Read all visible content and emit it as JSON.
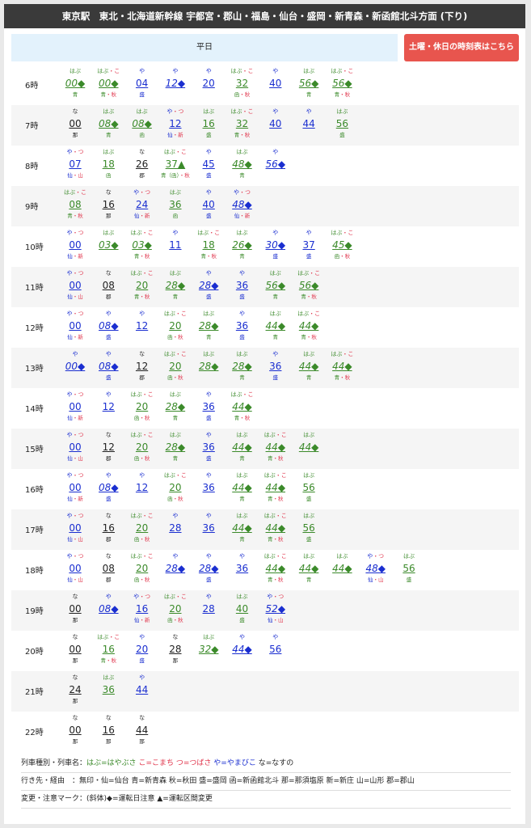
{
  "header": {
    "title": "東京駅　東北・北海道新幹線 宇都宮・郡山・福島・仙台・盛岡・新青森・新函館北斗方面 (下り)"
  },
  "weekday_tab": "平日",
  "holiday_button": "土曜・休日の時刻表はこちら",
  "colors": {
    "hayabusa": "#3b8a2a",
    "komachi": "#e0334a",
    "tsubasa": "#e0334a",
    "yamabiko": "#1a2ed0",
    "nasuno": "#222222",
    "header_bg": "#3a3a3a",
    "weekday_bg": "#e3f2fc",
    "holiday_bg": "#e8554e"
  },
  "hours": [
    {
      "hour": "6時",
      "trains": [
        {
          "n": "はぶ",
          "m": "00◆",
          "d": "青",
          "t": "hayabusa",
          "i": true
        },
        {
          "n": "はぶ・こ",
          "m": "00◆",
          "d": "青・秋",
          "t": "hayabusa",
          "i": true
        },
        {
          "n": "や",
          "m": "04",
          "d": "盛",
          "t": "yamabiko",
          "i": false
        },
        {
          "n": "や",
          "m": "12◆",
          "d": "",
          "t": "yamabiko",
          "i": true
        },
        {
          "n": "や",
          "m": "20",
          "d": "",
          "t": "yamabiko",
          "i": false
        },
        {
          "n": "はぶ・こ",
          "m": "32",
          "d": "函・秋",
          "t": "hayabusa",
          "i": false
        },
        {
          "n": "や",
          "m": "40",
          "d": "",
          "t": "yamabiko",
          "i": false
        },
        {
          "n": "はぶ",
          "m": "56◆",
          "d": "青",
          "t": "hayabusa",
          "i": true
        },
        {
          "n": "はぶ・こ",
          "m": "56◆",
          "d": "青・秋",
          "t": "hayabusa",
          "i": true
        }
      ]
    },
    {
      "hour": "7時",
      "trains": [
        {
          "n": "な",
          "m": "00",
          "d": "那",
          "t": "nasuno",
          "i": false
        },
        {
          "n": "はぶ",
          "m": "08◆",
          "d": "青",
          "t": "hayabusa",
          "i": true
        },
        {
          "n": "はぶ",
          "m": "08◆",
          "d": "函",
          "t": "hayabusa",
          "i": true
        },
        {
          "n": "や・つ",
          "m": "12",
          "d": "仙・新",
          "t": "yamabiko",
          "i": false
        },
        {
          "n": "はぶ",
          "m": "16",
          "d": "盛",
          "t": "hayabusa",
          "i": false
        },
        {
          "n": "はぶ・こ",
          "m": "32",
          "d": "青・秋",
          "t": "hayabusa",
          "i": false
        },
        {
          "n": "や",
          "m": "40",
          "d": "",
          "t": "yamabiko",
          "i": false
        },
        {
          "n": "や",
          "m": "44",
          "d": "",
          "t": "yamabiko",
          "i": false
        },
        {
          "n": "はぶ",
          "m": "56",
          "d": "盛",
          "t": "hayabusa",
          "i": false
        }
      ]
    },
    {
      "hour": "8時",
      "trains": [
        {
          "n": "や・つ",
          "m": "07",
          "d": "仙・山",
          "t": "yamabiko",
          "i": false
        },
        {
          "n": "はぶ",
          "m": "18",
          "d": "函",
          "t": "hayabusa",
          "i": false
        },
        {
          "n": "な",
          "m": "26",
          "d": "郡",
          "t": "nasuno",
          "i": false
        },
        {
          "n": "はぶ・こ",
          "m": "37▲",
          "d": "青（函）・秋",
          "t": "hayabusa",
          "i": false
        },
        {
          "n": "や",
          "m": "45",
          "d": "盛",
          "t": "yamabiko",
          "i": false
        },
        {
          "n": "はぶ",
          "m": "48◆",
          "d": "青",
          "t": "hayabusa",
          "i": true
        },
        {
          "n": "や",
          "m": "56◆",
          "d": "",
          "t": "yamabiko",
          "i": true
        }
      ]
    },
    {
      "hour": "9時",
      "trains": [
        {
          "n": "はぶ・こ",
          "m": "08",
          "d": "青・秋",
          "t": "hayabusa",
          "i": false
        },
        {
          "n": "な",
          "m": "16",
          "d": "那",
          "t": "nasuno",
          "i": false
        },
        {
          "n": "や・つ",
          "m": "24",
          "d": "仙・新",
          "t": "yamabiko",
          "i": false
        },
        {
          "n": "はぶ",
          "m": "36",
          "d": "函",
          "t": "hayabusa",
          "i": false
        },
        {
          "n": "や",
          "m": "40",
          "d": "盛",
          "t": "yamabiko",
          "i": false
        },
        {
          "n": "や・つ",
          "m": "48◆",
          "d": "仙・新",
          "t": "yamabiko",
          "i": true
        }
      ]
    },
    {
      "hour": "10時",
      "trains": [
        {
          "n": "や・つ",
          "m": "00",
          "d": "仙・新",
          "t": "yamabiko",
          "i": false
        },
        {
          "n": "はぶ",
          "m": "03◆",
          "d": "",
          "t": "hayabusa",
          "i": true
        },
        {
          "n": "はぶ・こ",
          "m": "03◆",
          "d": "青・秋",
          "t": "hayabusa",
          "i": true
        },
        {
          "n": "や",
          "m": "11",
          "d": "",
          "t": "yamabiko",
          "i": false
        },
        {
          "n": "はぶ・こ",
          "m": "18",
          "d": "青・秋",
          "t": "hayabusa",
          "i": false
        },
        {
          "n": "はぶ",
          "m": "26◆",
          "d": "青",
          "t": "hayabusa",
          "i": true
        },
        {
          "n": "や",
          "m": "30◆",
          "d": "盛",
          "t": "yamabiko",
          "i": true
        },
        {
          "n": "や",
          "m": "37",
          "d": "盛",
          "t": "yamabiko",
          "i": false
        },
        {
          "n": "はぶ・こ",
          "m": "45◆",
          "d": "函・秋",
          "t": "hayabusa",
          "i": true
        }
      ]
    },
    {
      "hour": "11時",
      "trains": [
        {
          "n": "や・つ",
          "m": "00",
          "d": "仙・山",
          "t": "yamabiko",
          "i": false
        },
        {
          "n": "な",
          "m": "08",
          "d": "郡",
          "t": "nasuno",
          "i": false
        },
        {
          "n": "はぶ・こ",
          "m": "20",
          "d": "青・秋",
          "t": "hayabusa",
          "i": false
        },
        {
          "n": "はぶ",
          "m": "28◆",
          "d": "青",
          "t": "hayabusa",
          "i": true
        },
        {
          "n": "や",
          "m": "28◆",
          "d": "盛",
          "t": "yamabiko",
          "i": true
        },
        {
          "n": "や",
          "m": "36",
          "d": "盛",
          "t": "yamabiko",
          "i": false
        },
        {
          "n": "はぶ",
          "m": "56◆",
          "d": "青",
          "t": "hayabusa",
          "i": true
        },
        {
          "n": "はぶ・こ",
          "m": "56◆",
          "d": "青・秋",
          "t": "hayabusa",
          "i": true
        }
      ]
    },
    {
      "hour": "12時",
      "trains": [
        {
          "n": "や・つ",
          "m": "00",
          "d": "仙・新",
          "t": "yamabiko",
          "i": false
        },
        {
          "n": "や",
          "m": "08◆",
          "d": "盛",
          "t": "yamabiko",
          "i": true
        },
        {
          "n": "や",
          "m": "12",
          "d": "",
          "t": "yamabiko",
          "i": false
        },
        {
          "n": "はぶ・こ",
          "m": "20",
          "d": "函・秋",
          "t": "hayabusa",
          "i": false
        },
        {
          "n": "はぶ",
          "m": "28◆",
          "d": "青",
          "t": "hayabusa",
          "i": true
        },
        {
          "n": "や",
          "m": "36",
          "d": "盛",
          "t": "yamabiko",
          "i": false
        },
        {
          "n": "はぶ",
          "m": "44◆",
          "d": "青",
          "t": "hayabusa",
          "i": true
        },
        {
          "n": "はぶ・こ",
          "m": "44◆",
          "d": "青・秋",
          "t": "hayabusa",
          "i": true
        }
      ]
    },
    {
      "hour": "13時",
      "trains": [
        {
          "n": "や",
          "m": "00◆",
          "d": "",
          "t": "yamabiko",
          "i": true
        },
        {
          "n": "や",
          "m": "08◆",
          "d": "盛",
          "t": "yamabiko",
          "i": true
        },
        {
          "n": "な",
          "m": "12",
          "d": "郡",
          "t": "nasuno",
          "i": false
        },
        {
          "n": "はぶ・こ",
          "m": "20",
          "d": "函・秋",
          "t": "hayabusa",
          "i": false
        },
        {
          "n": "はぶ",
          "m": "28◆",
          "d": "",
          "t": "hayabusa",
          "i": true
        },
        {
          "n": "はぶ",
          "m": "28◆",
          "d": "青",
          "t": "hayabusa",
          "i": true
        },
        {
          "n": "や",
          "m": "36",
          "d": "盛",
          "t": "yamabiko",
          "i": false
        },
        {
          "n": "はぶ",
          "m": "44◆",
          "d": "青",
          "t": "hayabusa",
          "i": true
        },
        {
          "n": "はぶ・こ",
          "m": "44◆",
          "d": "青・秋",
          "t": "hayabusa",
          "i": true
        }
      ]
    },
    {
      "hour": "14時",
      "trains": [
        {
          "n": "や・つ",
          "m": "00",
          "d": "仙・新",
          "t": "yamabiko",
          "i": false
        },
        {
          "n": "や",
          "m": "12",
          "d": "",
          "t": "yamabiko",
          "i": false
        },
        {
          "n": "はぶ・こ",
          "m": "20",
          "d": "函・秋",
          "t": "hayabusa",
          "i": false
        },
        {
          "n": "はぶ",
          "m": "28◆",
          "d": "青",
          "t": "hayabusa",
          "i": true
        },
        {
          "n": "や",
          "m": "36",
          "d": "盛",
          "t": "yamabiko",
          "i": false
        },
        {
          "n": "はぶ・こ",
          "m": "44◆",
          "d": "青・秋",
          "t": "hayabusa",
          "i": true
        }
      ]
    },
    {
      "hour": "15時",
      "trains": [
        {
          "n": "や・つ",
          "m": "00",
          "d": "仙・山",
          "t": "yamabiko",
          "i": false
        },
        {
          "n": "な",
          "m": "12",
          "d": "郡",
          "t": "nasuno",
          "i": false
        },
        {
          "n": "はぶ・こ",
          "m": "20",
          "d": "函・秋",
          "t": "hayabusa",
          "i": false
        },
        {
          "n": "はぶ",
          "m": "28◆",
          "d": "青",
          "t": "hayabusa",
          "i": true
        },
        {
          "n": "や",
          "m": "36",
          "d": "盛",
          "t": "yamabiko",
          "i": false
        },
        {
          "n": "はぶ",
          "m": "44◆",
          "d": "青",
          "t": "hayabusa",
          "i": true
        },
        {
          "n": "はぶ・こ",
          "m": "44◆",
          "d": "青・秋",
          "t": "hayabusa",
          "i": true
        },
        {
          "n": "はぶ",
          "m": "44◆",
          "d": "",
          "t": "hayabusa",
          "i": true
        }
      ]
    },
    {
      "hour": "16時",
      "trains": [
        {
          "n": "や・つ",
          "m": "00",
          "d": "仙・新",
          "t": "yamabiko",
          "i": false
        },
        {
          "n": "や",
          "m": "08◆",
          "d": "盛",
          "t": "yamabiko",
          "i": true
        },
        {
          "n": "や",
          "m": "12",
          "d": "",
          "t": "yamabiko",
          "i": false
        },
        {
          "n": "はぶ・こ",
          "m": "20",
          "d": "函・秋",
          "t": "hayabusa",
          "i": false
        },
        {
          "n": "や",
          "m": "36",
          "d": "",
          "t": "yamabiko",
          "i": false
        },
        {
          "n": "はぶ",
          "m": "44◆",
          "d": "青",
          "t": "hayabusa",
          "i": true
        },
        {
          "n": "はぶ・こ",
          "m": "44◆",
          "d": "青・秋",
          "t": "hayabusa",
          "i": true
        },
        {
          "n": "はぶ",
          "m": "56",
          "d": "盛",
          "t": "hayabusa",
          "i": false
        }
      ]
    },
    {
      "hour": "17時",
      "trains": [
        {
          "n": "や・つ",
          "m": "00",
          "d": "仙・山",
          "t": "yamabiko",
          "i": false
        },
        {
          "n": "な",
          "m": "16",
          "d": "郡",
          "t": "nasuno",
          "i": false
        },
        {
          "n": "はぶ・こ",
          "m": "20",
          "d": "函・秋",
          "t": "hayabusa",
          "i": false
        },
        {
          "n": "や",
          "m": "28",
          "d": "",
          "t": "yamabiko",
          "i": false
        },
        {
          "n": "や",
          "m": "36",
          "d": "",
          "t": "yamabiko",
          "i": false
        },
        {
          "n": "はぶ",
          "m": "44◆",
          "d": "青",
          "t": "hayabusa",
          "i": true
        },
        {
          "n": "はぶ・こ",
          "m": "44◆",
          "d": "青・秋",
          "t": "hayabusa",
          "i": true
        },
        {
          "n": "はぶ",
          "m": "56",
          "d": "盛",
          "t": "hayabusa",
          "i": false
        }
      ]
    },
    {
      "hour": "18時",
      "trains": [
        {
          "n": "や・つ",
          "m": "00",
          "d": "仙・山",
          "t": "yamabiko",
          "i": false
        },
        {
          "n": "な",
          "m": "08",
          "d": "郡",
          "t": "nasuno",
          "i": false
        },
        {
          "n": "はぶ・こ",
          "m": "20",
          "d": "函・秋",
          "t": "hayabusa",
          "i": false
        },
        {
          "n": "や",
          "m": "28◆",
          "d": "",
          "t": "yamabiko",
          "i": true
        },
        {
          "n": "や",
          "m": "28◆",
          "d": "盛",
          "t": "yamabiko",
          "i": true
        },
        {
          "n": "や",
          "m": "36",
          "d": "",
          "t": "yamabiko",
          "i": false
        },
        {
          "n": "はぶ・こ",
          "m": "44◆",
          "d": "青・秋",
          "t": "hayabusa",
          "i": true
        },
        {
          "n": "はぶ",
          "m": "44◆",
          "d": "青",
          "t": "hayabusa",
          "i": true
        },
        {
          "n": "はぶ",
          "m": "44◆",
          "d": "",
          "t": "hayabusa",
          "i": true
        },
        {
          "n": "や・つ",
          "m": "48◆",
          "d": "仙・山",
          "t": "yamabiko",
          "i": true
        },
        {
          "n": "はぶ",
          "m": "56",
          "d": "盛",
          "t": "hayabusa",
          "i": false
        }
      ]
    },
    {
      "hour": "19時",
      "trains": [
        {
          "n": "な",
          "m": "00",
          "d": "那",
          "t": "nasuno",
          "i": false
        },
        {
          "n": "や",
          "m": "08◆",
          "d": "",
          "t": "yamabiko",
          "i": true
        },
        {
          "n": "や・つ",
          "m": "16",
          "d": "仙・新",
          "t": "yamabiko",
          "i": false
        },
        {
          "n": "はぶ・こ",
          "m": "20",
          "d": "函・秋",
          "t": "hayabusa",
          "i": false
        },
        {
          "n": "や",
          "m": "28",
          "d": "",
          "t": "yamabiko",
          "i": false
        },
        {
          "n": "はぶ",
          "m": "40",
          "d": "盛",
          "t": "hayabusa",
          "i": false
        },
        {
          "n": "や・つ",
          "m": "52◆",
          "d": "仙・山",
          "t": "yamabiko",
          "i": true
        }
      ]
    },
    {
      "hour": "20時",
      "trains": [
        {
          "n": "な",
          "m": "00",
          "d": "那",
          "t": "nasuno",
          "i": false
        },
        {
          "n": "はぶ・こ",
          "m": "16",
          "d": "青・秋",
          "t": "hayabusa",
          "i": false
        },
        {
          "n": "や",
          "m": "20",
          "d": "盛",
          "t": "yamabiko",
          "i": false
        },
        {
          "n": "な",
          "m": "28",
          "d": "那",
          "t": "nasuno",
          "i": false
        },
        {
          "n": "はぶ",
          "m": "32◆",
          "d": "",
          "t": "hayabusa",
          "i": true
        },
        {
          "n": "や",
          "m": "44◆",
          "d": "",
          "t": "yamabiko",
          "i": true
        },
        {
          "n": "や",
          "m": "56",
          "d": "",
          "t": "yamabiko",
          "i": false
        }
      ]
    },
    {
      "hour": "21時",
      "trains": [
        {
          "n": "な",
          "m": "24",
          "d": "那",
          "t": "nasuno",
          "i": false
        },
        {
          "n": "はぶ",
          "m": "36",
          "d": "",
          "t": "hayabusa",
          "i": false
        },
        {
          "n": "や",
          "m": "44",
          "d": "",
          "t": "yamabiko",
          "i": false
        }
      ]
    },
    {
      "hour": "22時",
      "trains": [
        {
          "n": "な",
          "m": "00",
          "d": "那",
          "t": "nasuno",
          "i": false
        },
        {
          "n": "な",
          "m": "16",
          "d": "那",
          "t": "nasuno",
          "i": false
        },
        {
          "n": "な",
          "m": "44",
          "d": "那",
          "t": "nasuno",
          "i": false
        }
      ]
    }
  ],
  "legend": {
    "types_label": "列車種別・列車名：",
    "types": [
      {
        "text": "はぶ=はやぶさ",
        "t": "hayabusa"
      },
      {
        "text": "こ=こまち",
        "t": "komachi"
      },
      {
        "text": "つ=つばさ",
        "t": "tsubasa"
      },
      {
        "text": "や=やまびこ",
        "t": "yamabiko"
      },
      {
        "text": "な=なすの",
        "t": "nasuno"
      }
    ],
    "dest_label": "行き先・経由",
    "dest": "：無印・仙=仙台 青=新青森 秋=秋田 盛=盛岡 函=新函館北斗 那=那須塩原 新=新庄 山=山形 郡=郡山",
    "marks_label": "変更・注意マーク",
    "marks": "：(斜体)◆=運転日注意 ▲=運転区間変更"
  }
}
